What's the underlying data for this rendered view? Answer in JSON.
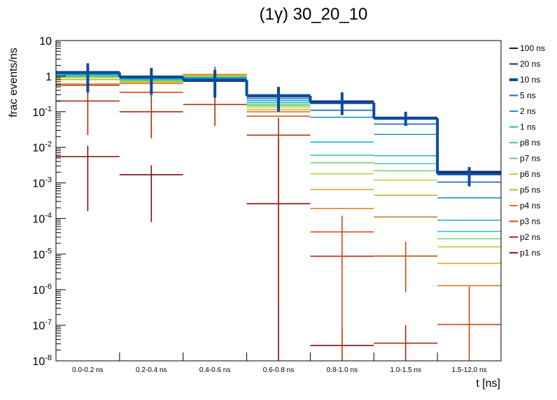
{
  "chart_data": {
    "type": "step",
    "title": "(1γ) 30_20_10",
    "xlabel": "t [ns]",
    "ylabel": "frac events/ns",
    "yscale": "log",
    "ylim": [
      1e-08,
      10
    ],
    "grid": false,
    "legend_position": "right",
    "categories": [
      "0.0-0.2 ns",
      "0.2-0.4 ns",
      "0.4-0.6 ns",
      "0.6-0.8 ns",
      "0.8-1.0 ns",
      "1.0-1.5 ns",
      "1.5-12.0 ns"
    ],
    "y_tick_labels": [
      "10",
      "1",
      "10^-1",
      "10^-2",
      "10^-3",
      "10^-4",
      "10^-5",
      "10^-6",
      "10^-7",
      "10^-8"
    ],
    "series": [
      {
        "name": "100 ns",
        "color": "#0b1a4f",
        "values": [
          1.33,
          1.0,
          0.72,
          0.3,
          0.2,
          0.07,
          0.0021
        ]
      },
      {
        "name": "20 ns",
        "color": "#0c2b7e",
        "values": [
          1.3,
          0.98,
          0.75,
          0.29,
          0.19,
          0.068,
          0.002
        ]
      },
      {
        "name": "10 ns",
        "color": "#0c4aa0",
        "values": [
          1.27,
          0.95,
          0.78,
          0.28,
          0.18,
          0.065,
          0.0018
        ],
        "highlight": true,
        "errors": [
          [
            0.35,
            2.3
          ],
          [
            0.3,
            1.7
          ],
          [
            0.25,
            1.5
          ],
          [
            0.1,
            0.5
          ],
          [
            0.08,
            0.35
          ],
          [
            0.04,
            0.1
          ],
          [
            0.0008,
            0.0028
          ]
        ]
      },
      {
        "name": "5 ns",
        "color": "#1769b5",
        "values": [
          1.22,
          0.9,
          0.82,
          0.24,
          0.11,
          0.045,
          0.00105
        ]
      },
      {
        "name": "2 ns",
        "color": "#1f96c2",
        "values": [
          1.15,
          0.86,
          0.86,
          0.21,
          0.07,
          0.023,
          0.00038
        ]
      },
      {
        "name": "1 ns",
        "color": "#24b8c6",
        "values": [
          1.08,
          0.82,
          0.9,
          0.185,
          0.014,
          0.0058,
          9e-05
        ]
      },
      {
        "name": "p8 ns",
        "color": "#3fc9a8",
        "values": [
          1.02,
          0.79,
          0.93,
          0.165,
          0.006,
          0.0035,
          4.3e-05
        ]
      },
      {
        "name": "p7 ns",
        "color": "#73cf6c",
        "values": [
          0.97,
          0.76,
          0.96,
          0.15,
          0.0037,
          0.0022,
          2.7e-05
        ]
      },
      {
        "name": "p6 ns",
        "color": "#b9d23b",
        "values": [
          0.9,
          0.72,
          1.0,
          0.135,
          0.0018,
          0.0012,
          1.6e-05
        ]
      },
      {
        "name": "p5 ns",
        "color": "#d4ad2a",
        "values": [
          0.8,
          0.68,
          1.06,
          0.115,
          0.00065,
          0.00045,
          5.5e-06
        ]
      },
      {
        "name": "p4 ns",
        "color": "#d67a1e",
        "values": [
          0.6,
          0.62,
          1.12,
          0.1,
          0.00019,
          0.00011,
          1.3e-06
        ]
      },
      {
        "name": "p3 ns",
        "color": "#cc4a14",
        "values": [
          0.55,
          0.35,
          1.1,
          0.075,
          4.2e-05,
          8.8e-06,
          1.05e-07
        ],
        "errors": [
          [
            null,
            null
          ],
          [
            null,
            null
          ],
          [
            null,
            null
          ],
          [
            null,
            null
          ],
          [
            1e-08,
            0.00012
          ],
          [
            8.5e-07,
            2.2e-05
          ],
          [
            1e-08,
            1.25e-06
          ]
        ]
      },
      {
        "name": "p2 ns",
        "color": "#b22a10",
        "values": [
          0.2,
          0.1,
          0.16,
          0.022,
          8.7e-06,
          3.15e-08,
          0
        ],
        "errors": [
          [
            0.022,
            0.95
          ],
          [
            0.018,
            0.58
          ],
          [
            0.04,
            1.85
          ],
          [
            5.5e-07,
            0.068
          ],
          [
            null,
            null
          ],
          [
            1e-08,
            1e-07
          ],
          [
            null,
            null
          ]
        ]
      },
      {
        "name": "p1 ns",
        "color": "#7d0f0f",
        "values": [
          0.0055,
          0.0017,
          0,
          0.00026,
          2.7e-08,
          0,
          0
        ],
        "errors": [
          [
            0.00016,
            0.011
          ],
          [
            8e-05,
            0.0031
          ],
          [
            null,
            null
          ],
          [
            1e-08,
            0.018
          ],
          [
            1e-08,
            8e-08
          ],
          [
            null,
            null
          ],
          [
            null,
            null
          ]
        ]
      }
    ]
  }
}
